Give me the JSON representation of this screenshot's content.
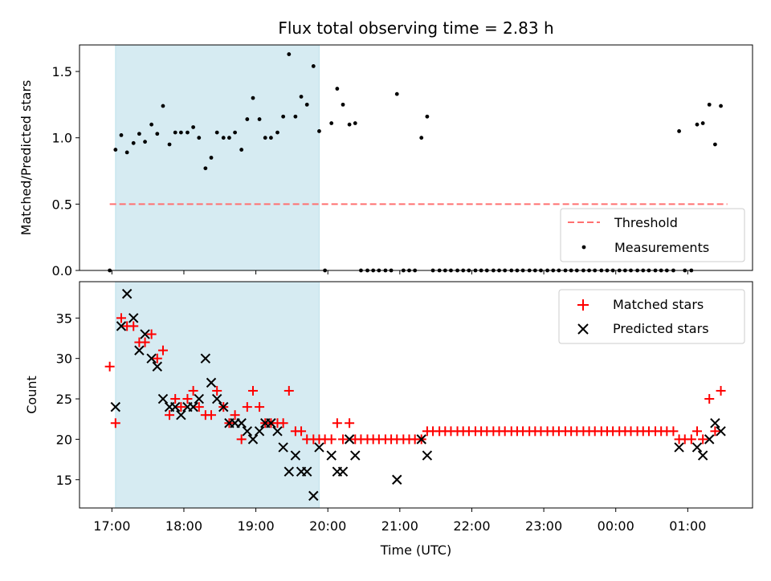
{
  "chart_data": [
    {
      "type": "scatter",
      "title": "Flux total observing time = 2.83 h",
      "ylabel": "Matched/Predicted stars",
      "xlabel": "",
      "ylim": [
        0,
        1.7
      ],
      "xlim": [
        -0.45,
        8.9
      ],
      "x_unit": "hours since 17:00 UTC",
      "yticks": [
        0.0,
        0.5,
        1.0,
        1.5
      ],
      "ytick_labels": [
        "0.0",
        "0.5",
        "1.0",
        "1.5"
      ],
      "shaded_span": [
        0.05,
        2.88
      ],
      "threshold": {
        "name": "Threshold",
        "y": 0.5,
        "x_range": [
          -0.03,
          8.55
        ],
        "color": "#ff7070"
      },
      "legend": {
        "placement": "lower-right",
        "entries": [
          "Threshold",
          "Measurements"
        ]
      },
      "series": [
        {
          "name": "Measurements",
          "color": "#000000",
          "points": [
            [
              -0.03,
              0.0
            ],
            [
              0.05,
              0.91
            ],
            [
              0.13,
              1.02
            ],
            [
              0.21,
              0.89
            ],
            [
              0.3,
              0.96
            ],
            [
              0.38,
              1.03
            ],
            [
              0.46,
              0.97
            ],
            [
              0.55,
              1.1
            ],
            [
              0.63,
              1.03
            ],
            [
              0.71,
              1.24
            ],
            [
              0.8,
              0.95
            ],
            [
              0.88,
              1.04
            ],
            [
              0.96,
              1.04
            ],
            [
              1.05,
              1.04
            ],
            [
              1.13,
              1.08
            ],
            [
              1.21,
              1.0
            ],
            [
              1.3,
              0.77
            ],
            [
              1.38,
              0.85
            ],
            [
              1.46,
              1.04
            ],
            [
              1.55,
              1.0
            ],
            [
              1.63,
              1.0
            ],
            [
              1.71,
              1.04
            ],
            [
              1.8,
              0.91
            ],
            [
              1.88,
              1.14
            ],
            [
              1.96,
              1.3
            ],
            [
              2.05,
              1.14
            ],
            [
              2.13,
              1.0
            ],
            [
              2.21,
              1.0
            ],
            [
              2.3,
              1.04
            ],
            [
              2.38,
              1.16
            ],
            [
              2.46,
              1.63
            ],
            [
              2.55,
              1.16
            ],
            [
              2.63,
              1.31
            ],
            [
              2.71,
              1.25
            ],
            [
              2.8,
              1.54
            ],
            [
              2.88,
              1.05
            ],
            [
              2.96,
              0.0
            ],
            [
              3.05,
              1.11
            ],
            [
              3.13,
              1.37
            ],
            [
              3.21,
              1.25
            ],
            [
              3.3,
              1.1
            ],
            [
              3.38,
              1.11
            ],
            [
              3.46,
              0.0
            ],
            [
              3.55,
              0.0
            ],
            [
              3.63,
              0.0
            ],
            [
              3.71,
              0.0
            ],
            [
              3.8,
              0.0
            ],
            [
              3.88,
              0.0
            ],
            [
              3.96,
              1.33
            ],
            [
              4.05,
              0.0
            ],
            [
              4.13,
              0.0
            ],
            [
              4.21,
              0.0
            ],
            [
              4.3,
              1.0
            ],
            [
              4.38,
              1.16
            ],
            [
              4.46,
              0.0
            ],
            [
              4.55,
              0.0
            ],
            [
              4.63,
              0.0
            ],
            [
              4.71,
              0.0
            ],
            [
              4.8,
              0.0
            ],
            [
              4.88,
              0.0
            ],
            [
              4.96,
              0.0
            ],
            [
              5.05,
              0.0
            ],
            [
              5.13,
              0.0
            ],
            [
              5.21,
              0.0
            ],
            [
              5.3,
              0.0
            ],
            [
              5.38,
              0.0
            ],
            [
              5.46,
              0.0
            ],
            [
              5.55,
              0.0
            ],
            [
              5.63,
              0.0
            ],
            [
              5.71,
              0.0
            ],
            [
              5.8,
              0.0
            ],
            [
              5.88,
              0.0
            ],
            [
              5.96,
              0.0
            ],
            [
              6.05,
              0.0
            ],
            [
              6.13,
              0.0
            ],
            [
              6.21,
              0.0
            ],
            [
              6.3,
              0.0
            ],
            [
              6.38,
              0.0
            ],
            [
              6.46,
              0.0
            ],
            [
              6.55,
              0.0
            ],
            [
              6.63,
              0.0
            ],
            [
              6.71,
              0.0
            ],
            [
              6.8,
              0.0
            ],
            [
              6.88,
              0.0
            ],
            [
              6.96,
              0.0
            ],
            [
              7.05,
              0.0
            ],
            [
              7.13,
              0.0
            ],
            [
              7.21,
              0.0
            ],
            [
              7.3,
              0.0
            ],
            [
              7.38,
              0.0
            ],
            [
              7.46,
              0.0
            ],
            [
              7.55,
              0.0
            ],
            [
              7.63,
              0.0
            ],
            [
              7.71,
              0.0
            ],
            [
              7.8,
              0.0
            ],
            [
              7.88,
              1.05
            ],
            [
              7.96,
              0.0
            ],
            [
              8.05,
              0.0
            ],
            [
              8.13,
              1.1
            ],
            [
              8.21,
              1.11
            ],
            [
              8.3,
              1.25
            ],
            [
              8.38,
              0.95
            ],
            [
              8.46,
              1.24
            ]
          ]
        }
      ]
    },
    {
      "type": "scatter",
      "xlabel": "Time (UTC)",
      "ylabel": "Count",
      "ylim": [
        11.5,
        39.5
      ],
      "xlim": [
        -0.45,
        8.9
      ],
      "x_unit": "hours since 17:00 UTC",
      "yticks": [
        15,
        20,
        25,
        30,
        35
      ],
      "ytick_labels": [
        "15",
        "20",
        "25",
        "30",
        "35"
      ],
      "xticks": [
        0,
        1,
        2,
        3,
        4,
        5,
        6,
        7,
        8
      ],
      "xtick_labels": [
        "17:00",
        "18:00",
        "19:00",
        "20:00",
        "21:00",
        "22:00",
        "23:00",
        "00:00",
        "01:00"
      ],
      "shaded_span": [
        0.05,
        2.88
      ],
      "legend": {
        "placement": "upper-right",
        "entries": [
          "Matched stars",
          "Predicted stars"
        ]
      },
      "series": [
        {
          "name": "Matched stars",
          "marker": "plus",
          "color": "#ff0000",
          "points": [
            [
              -0.03,
              29
            ],
            [
              0.05,
              22
            ],
            [
              0.13,
              35
            ],
            [
              0.21,
              34
            ],
            [
              0.3,
              34
            ],
            [
              0.38,
              32
            ],
            [
              0.46,
              32
            ],
            [
              0.55,
              33
            ],
            [
              0.63,
              30
            ],
            [
              0.71,
              31
            ],
            [
              0.8,
              23
            ],
            [
              0.88,
              25
            ],
            [
              0.96,
              24
            ],
            [
              1.05,
              25
            ],
            [
              1.13,
              26
            ],
            [
              1.21,
              24
            ],
            [
              1.3,
              23
            ],
            [
              1.38,
              23
            ],
            [
              1.46,
              26
            ],
            [
              1.55,
              24
            ],
            [
              1.63,
              22
            ],
            [
              1.71,
              23
            ],
            [
              1.8,
              20
            ],
            [
              1.88,
              24
            ],
            [
              1.96,
              26
            ],
            [
              2.05,
              24
            ],
            [
              2.13,
              22
            ],
            [
              2.21,
              22
            ],
            [
              2.3,
              22
            ],
            [
              2.38,
              22
            ],
            [
              2.46,
              26
            ],
            [
              2.55,
              21
            ],
            [
              2.63,
              21
            ],
            [
              2.71,
              20
            ],
            [
              2.8,
              20
            ],
            [
              2.88,
              20
            ],
            [
              2.96,
              20
            ],
            [
              3.05,
              20
            ],
            [
              3.13,
              22
            ],
            [
              3.21,
              20
            ],
            [
              3.3,
              22
            ],
            [
              3.38,
              20
            ],
            [
              3.46,
              20
            ],
            [
              3.55,
              20
            ],
            [
              3.63,
              20
            ],
            [
              3.71,
              20
            ],
            [
              3.8,
              20
            ],
            [
              3.88,
              20
            ],
            [
              3.96,
              20
            ],
            [
              4.05,
              20
            ],
            [
              4.13,
              20
            ],
            [
              4.21,
              20
            ],
            [
              4.3,
              20
            ],
            [
              4.38,
              21
            ],
            [
              4.46,
              21
            ],
            [
              4.55,
              21
            ],
            [
              4.63,
              21
            ],
            [
              4.71,
              21
            ],
            [
              4.8,
              21
            ],
            [
              4.88,
              21
            ],
            [
              4.96,
              21
            ],
            [
              5.05,
              21
            ],
            [
              5.13,
              21
            ],
            [
              5.21,
              21
            ],
            [
              5.3,
              21
            ],
            [
              5.38,
              21
            ],
            [
              5.46,
              21
            ],
            [
              5.55,
              21
            ],
            [
              5.63,
              21
            ],
            [
              5.71,
              21
            ],
            [
              5.8,
              21
            ],
            [
              5.88,
              21
            ],
            [
              5.96,
              21
            ],
            [
              6.05,
              21
            ],
            [
              6.13,
              21
            ],
            [
              6.21,
              21
            ],
            [
              6.3,
              21
            ],
            [
              6.38,
              21
            ],
            [
              6.46,
              21
            ],
            [
              6.55,
              21
            ],
            [
              6.63,
              21
            ],
            [
              6.71,
              21
            ],
            [
              6.8,
              21
            ],
            [
              6.88,
              21
            ],
            [
              6.96,
              21
            ],
            [
              7.05,
              21
            ],
            [
              7.13,
              21
            ],
            [
              7.21,
              21
            ],
            [
              7.3,
              21
            ],
            [
              7.38,
              21
            ],
            [
              7.46,
              21
            ],
            [
              7.55,
              21
            ],
            [
              7.63,
              21
            ],
            [
              7.71,
              21
            ],
            [
              7.8,
              21
            ],
            [
              7.88,
              20
            ],
            [
              7.96,
              20
            ],
            [
              8.05,
              20
            ],
            [
              8.13,
              21
            ],
            [
              8.21,
              20
            ],
            [
              8.3,
              25
            ],
            [
              8.38,
              21
            ],
            [
              8.46,
              26
            ]
          ]
        },
        {
          "name": "Predicted stars",
          "marker": "x",
          "color": "#000000",
          "points": [
            [
              0.05,
              24
            ],
            [
              0.13,
              34
            ],
            [
              0.21,
              38
            ],
            [
              0.3,
              35
            ],
            [
              0.38,
              31
            ],
            [
              0.46,
              33
            ],
            [
              0.55,
              30
            ],
            [
              0.63,
              29
            ],
            [
              0.71,
              25
            ],
            [
              0.8,
              24
            ],
            [
              0.88,
              24
            ],
            [
              0.96,
              23
            ],
            [
              1.05,
              24
            ],
            [
              1.13,
              24
            ],
            [
              1.21,
              25
            ],
            [
              1.3,
              30
            ],
            [
              1.38,
              27
            ],
            [
              1.46,
              25
            ],
            [
              1.55,
              24
            ],
            [
              1.63,
              22
            ],
            [
              1.71,
              22
            ],
            [
              1.8,
              22
            ],
            [
              1.88,
              21
            ],
            [
              1.96,
              20
            ],
            [
              2.05,
              21
            ],
            [
              2.13,
              22
            ],
            [
              2.21,
              22
            ],
            [
              2.3,
              21
            ],
            [
              2.38,
              19
            ],
            [
              2.46,
              16
            ],
            [
              2.55,
              18
            ],
            [
              2.63,
              16
            ],
            [
              2.71,
              16
            ],
            [
              2.8,
              13
            ],
            [
              2.88,
              19
            ],
            [
              3.05,
              18
            ],
            [
              3.13,
              16
            ],
            [
              3.21,
              16
            ],
            [
              3.3,
              20
            ],
            [
              3.38,
              18
            ],
            [
              3.96,
              15
            ],
            [
              4.3,
              20
            ],
            [
              4.38,
              18
            ],
            [
              7.88,
              19
            ],
            [
              8.13,
              19
            ],
            [
              8.21,
              18
            ],
            [
              8.3,
              20
            ],
            [
              8.38,
              22
            ],
            [
              8.46,
              21
            ]
          ]
        }
      ]
    }
  ]
}
